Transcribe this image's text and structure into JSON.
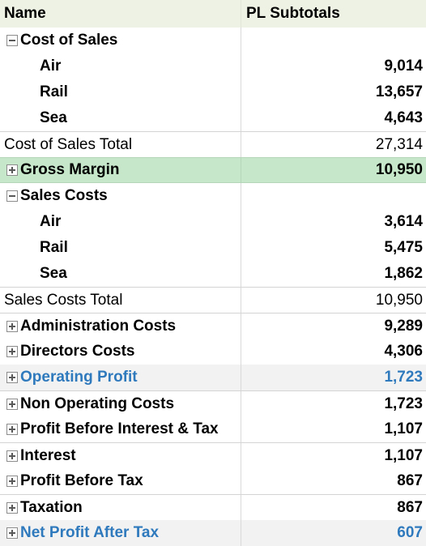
{
  "header": {
    "name": "Name",
    "value": "PL Subtotals"
  },
  "rows": [
    {
      "label": "Cost of Sales",
      "value": "",
      "type": "group",
      "toggle": "minus"
    },
    {
      "label": "Air",
      "value": "9,014",
      "type": "child"
    },
    {
      "label": "Rail",
      "value": "13,657",
      "type": "child"
    },
    {
      "label": "Sea",
      "value": "4,643",
      "type": "child"
    },
    {
      "label": "Cost of Sales Total",
      "value": "27,314",
      "type": "total"
    },
    {
      "label": "Gross Margin",
      "value": "10,950",
      "type": "highlight",
      "toggle": "plus"
    },
    {
      "label": "Sales Costs",
      "value": "",
      "type": "group",
      "toggle": "minus"
    },
    {
      "label": "Air",
      "value": "3,614",
      "type": "child"
    },
    {
      "label": "Rail",
      "value": "5,475",
      "type": "child"
    },
    {
      "label": "Sea",
      "value": "1,862",
      "type": "child"
    },
    {
      "label": "Sales Costs Total",
      "value": "10,950",
      "type": "total"
    },
    {
      "label": "Administration Costs",
      "value": "9,289",
      "type": "group",
      "toggle": "plus"
    },
    {
      "label": "Directors Costs",
      "value": "4,306",
      "type": "group",
      "toggle": "plus"
    },
    {
      "label": "Operating Profit",
      "value": "1,723",
      "type": "subtotal",
      "toggle": "plus"
    },
    {
      "label": "Non Operating Costs",
      "value": "1,723",
      "type": "group",
      "toggle": "plus"
    },
    {
      "label": "Profit Before Interest & Tax",
      "value": "1,107",
      "type": "group",
      "toggle": "plus"
    },
    {
      "label": "Interest",
      "value": "1,107",
      "type": "group",
      "toggle": "plus"
    },
    {
      "label": "Profit Before Tax",
      "value": "867",
      "type": "group",
      "toggle": "plus"
    },
    {
      "label": "Taxation",
      "value": "867",
      "type": "group",
      "toggle": "plus"
    },
    {
      "label": "Net Profit After Tax",
      "value": "607",
      "type": "subtotal",
      "toggle": "plus"
    }
  ],
  "colors": {
    "header_bg": "#eef2e4",
    "highlight_bg": "#c6e7c9",
    "subtotal_bg": "#f2f2f2",
    "subtotal_text": "#2f79bd"
  }
}
